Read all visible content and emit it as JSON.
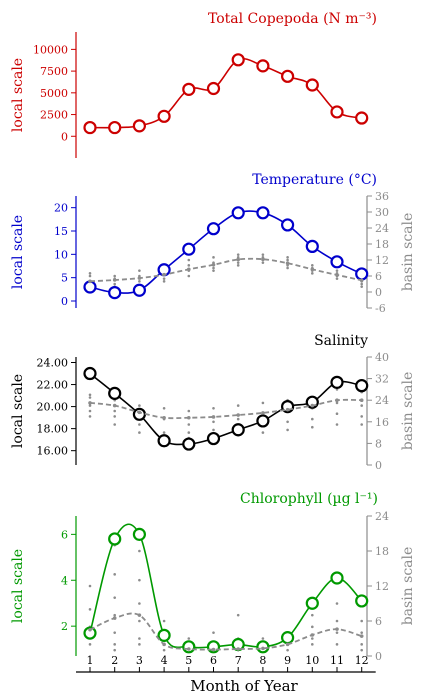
{
  "figure": {
    "x_axis_title": "Month of Year",
    "x_ticks": [
      "1",
      "2",
      "3",
      "4",
      "5",
      "6",
      "7",
      "8",
      "9",
      "10",
      "11",
      "12"
    ]
  },
  "chart_data": [
    {
      "type": "line",
      "title": "Total Copepoda (N m⁻³)",
      "title_color": "#cc0000",
      "ylabel": "local scale",
      "ylim": [
        -2500,
        12000
      ],
      "yticks": [
        "0",
        "2500",
        "5000",
        "7500",
        "10000"
      ],
      "color": "#cc0000",
      "x": [
        1,
        2,
        3,
        4,
        5,
        6,
        7,
        8,
        9,
        10,
        11,
        12
      ],
      "series": [
        {
          "values": [
            1000,
            1000,
            1200,
            2300,
            5400,
            5500,
            8800,
            8100,
            6900,
            5900,
            2800,
            2100
          ]
        }
      ]
    },
    {
      "type": "line",
      "title": "Temperature (°C)",
      "title_color": "#0000cc",
      "ylabel": "local scale",
      "ylabel_right": "basin scale",
      "ylim": [
        -1.5,
        22.5
      ],
      "ylim_right": [
        -6,
        36
      ],
      "yticks": [
        "0",
        "5",
        "10",
        "15",
        "20"
      ],
      "yticks_right": [
        "-6",
        "0",
        "6",
        "12",
        "18",
        "24",
        "30",
        "36"
      ],
      "color": "#0000cc",
      "basin_color": "#8c8c8c",
      "x": [
        1,
        2,
        3,
        4,
        5,
        6,
        7,
        8,
        9,
        10,
        11,
        12
      ],
      "series": [
        {
          "values": [
            3.0,
            1.8,
            2.3,
            6.7,
            11.1,
            15.5,
            18.9,
            18.9,
            16.3,
            11.7,
            8.4,
            5.8
          ]
        },
        {
          "axis": "right",
          "style": "dashed",
          "values": [
            4,
            4.5,
            5.2,
            6.5,
            8.5,
            10.2,
            12.2,
            12.3,
            10.8,
            8.5,
            6.4,
            4.4
          ]
        }
      ],
      "scatter_right": [
        [
          1,
          6
        ],
        [
          1,
          4
        ],
        [
          1,
          2
        ],
        [
          1,
          7
        ],
        [
          2,
          5
        ],
        [
          2,
          3
        ],
        [
          2,
          2
        ],
        [
          2,
          6
        ],
        [
          3,
          6
        ],
        [
          3,
          4
        ],
        [
          3,
          8
        ],
        [
          4,
          7
        ],
        [
          4,
          5
        ],
        [
          4,
          9
        ],
        [
          4,
          4
        ],
        [
          5,
          8
        ],
        [
          5,
          10
        ],
        [
          5,
          6
        ],
        [
          5,
          12
        ],
        [
          6,
          9
        ],
        [
          6,
          11
        ],
        [
          6,
          13
        ],
        [
          6,
          8
        ],
        [
          7,
          11
        ],
        [
          7,
          13
        ],
        [
          7,
          14
        ],
        [
          7,
          10
        ],
        [
          8,
          13
        ],
        [
          8,
          11
        ],
        [
          8,
          14
        ],
        [
          8,
          12
        ],
        [
          9,
          12
        ],
        [
          9,
          10
        ],
        [
          9,
          9
        ],
        [
          9,
          13
        ],
        [
          10,
          9
        ],
        [
          10,
          7
        ],
        [
          10,
          10
        ],
        [
          10,
          8
        ],
        [
          11,
          7
        ],
        [
          11,
          5
        ],
        [
          11,
          6
        ],
        [
          11,
          8
        ],
        [
          12,
          4
        ],
        [
          12,
          2
        ],
        [
          12,
          3
        ],
        [
          12,
          6
        ]
      ]
    },
    {
      "type": "line",
      "title": "Salinity",
      "title_color": "#000000",
      "ylabel": "local scale",
      "ylabel_right": "basin scale",
      "ylim": [
        14.7,
        24.5
      ],
      "ylim_right": [
        0,
        40
      ],
      "yticks": [
        "16.00",
        "18.00",
        "20.00",
        "22.00",
        "24.00"
      ],
      "yticks_right": [
        "0",
        "8",
        "16",
        "24",
        "32",
        "40"
      ],
      "color": "#000000",
      "basin_color": "#8c8c8c",
      "x": [
        1,
        2,
        3,
        4,
        5,
        6,
        7,
        8,
        9,
        10,
        11,
        12
      ],
      "series": [
        {
          "values": [
            23.0,
            21.2,
            19.3,
            16.9,
            16.6,
            17.1,
            17.9,
            18.7,
            20.0,
            20.4,
            22.2,
            21.9
          ]
        },
        {
          "axis": "right",
          "style": "dashed",
          "values": [
            23,
            22,
            19.5,
            17.5,
            17.5,
            17.8,
            18.5,
            19.3,
            20.5,
            22,
            24,
            24
          ]
        }
      ],
      "scatter_right": [
        [
          1,
          26
        ],
        [
          1,
          22
        ],
        [
          1,
          20
        ],
        [
          1,
          18
        ],
        [
          1,
          25
        ],
        [
          2,
          24
        ],
        [
          2,
          20
        ],
        [
          2,
          18
        ],
        [
          2,
          15
        ],
        [
          3,
          22
        ],
        [
          3,
          18
        ],
        [
          3,
          15
        ],
        [
          3,
          12
        ],
        [
          4,
          21
        ],
        [
          4,
          17
        ],
        [
          4,
          12
        ],
        [
          4,
          10
        ],
        [
          5,
          20
        ],
        [
          5,
          15
        ],
        [
          5,
          12
        ],
        [
          5,
          10
        ],
        [
          6,
          21
        ],
        [
          6,
          16
        ],
        [
          6,
          13
        ],
        [
          6,
          10
        ],
        [
          7,
          22
        ],
        [
          7,
          17
        ],
        [
          7,
          14
        ],
        [
          7,
          11
        ],
        [
          8,
          23
        ],
        [
          8,
          18
        ],
        [
          8,
          15
        ],
        [
          8,
          12
        ],
        [
          9,
          24
        ],
        [
          9,
          20
        ],
        [
          9,
          16
        ],
        [
          9,
          13
        ],
        [
          10,
          25
        ],
        [
          10,
          21
        ],
        [
          10,
          17
        ],
        [
          10,
          14
        ],
        [
          11,
          28
        ],
        [
          11,
          23
        ],
        [
          11,
          19
        ],
        [
          11,
          15
        ],
        [
          12,
          27
        ],
        [
          12,
          22
        ],
        [
          12,
          18
        ],
        [
          12,
          15
        ]
      ]
    },
    {
      "type": "line",
      "title": "Chlorophyll (µg l⁻¹)",
      "title_color": "#009900",
      "ylabel": "local scale",
      "ylabel_right": "basin scale",
      "ylim": [
        0.7,
        6.8
      ],
      "ylim_right": [
        0,
        24
      ],
      "yticks": [
        "2",
        "4",
        "6"
      ],
      "yticks_right": [
        "0",
        "6",
        "12",
        "18",
        "24"
      ],
      "color": "#009900",
      "basin_color": "#8c8c8c",
      "x": [
        1,
        2,
        3,
        4,
        5,
        6,
        7,
        8,
        9,
        10,
        11,
        12
      ],
      "series": [
        {
          "values": [
            1.7,
            5.8,
            6.0,
            1.6,
            1.1,
            1.1,
            1.2,
            1.1,
            1.5,
            3.0,
            4.1,
            3.1
          ]
        },
        {
          "axis": "right",
          "style": "dashed",
          "values": [
            4.5,
            6.5,
            7.0,
            2.0,
            1.2,
            1.1,
            1.2,
            1.3,
            2.0,
            3.6,
            4.6,
            3.4
          ]
        }
      ],
      "scatter_right": [
        [
          1,
          12
        ],
        [
          1,
          8
        ],
        [
          1,
          5
        ],
        [
          1,
          3
        ],
        [
          1,
          2
        ],
        [
          2,
          19
        ],
        [
          2,
          14
        ],
        [
          2,
          10
        ],
        [
          2,
          7
        ],
        [
          2,
          4
        ],
        [
          2,
          2
        ],
        [
          2,
          1
        ],
        [
          3,
          18
        ],
        [
          3,
          13
        ],
        [
          3,
          9
        ],
        [
          3,
          6
        ],
        [
          3,
          3
        ],
        [
          3,
          2
        ],
        [
          4,
          6
        ],
        [
          4,
          4
        ],
        [
          4,
          2
        ],
        [
          4,
          1
        ],
        [
          5,
          3
        ],
        [
          5,
          2
        ],
        [
          5,
          1
        ],
        [
          6,
          4
        ],
        [
          6,
          2
        ],
        [
          6,
          1
        ],
        [
          7,
          7
        ],
        [
          7,
          3
        ],
        [
          7,
          2
        ],
        [
          7,
          1
        ],
        [
          8,
          3
        ],
        [
          8,
          2
        ],
        [
          8,
          1
        ],
        [
          9,
          4
        ],
        [
          9,
          3
        ],
        [
          9,
          2
        ],
        [
          9,
          1
        ],
        [
          10,
          7
        ],
        [
          10,
          5
        ],
        [
          10,
          3
        ],
        [
          10,
          2
        ],
        [
          11,
          9
        ],
        [
          11,
          6
        ],
        [
          11,
          4
        ],
        [
          11,
          2
        ],
        [
          12,
          6
        ],
        [
          12,
          4
        ],
        [
          12,
          2
        ],
        [
          12,
          1
        ]
      ]
    }
  ]
}
